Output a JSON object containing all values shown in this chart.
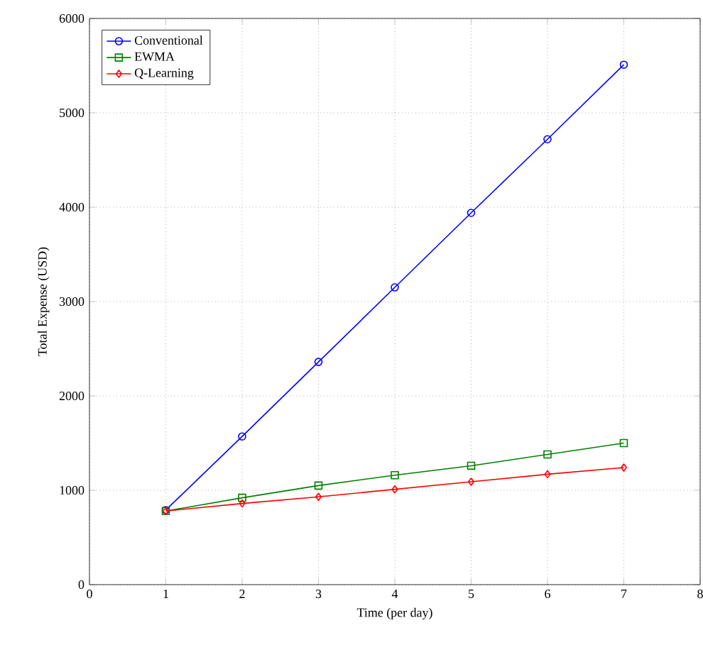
{
  "chart_data": {
    "type": "line",
    "xlabel": "Time (per day)",
    "ylabel": "Total Expense (USD)",
    "x": [
      1,
      2,
      3,
      4,
      5,
      6,
      7
    ],
    "series": [
      {
        "name": "Conventional",
        "color": "#0000ff",
        "marker": "circle",
        "values": [
          790,
          1570,
          2360,
          3150,
          3940,
          4720,
          5510
        ]
      },
      {
        "name": "EWMA",
        "color": "#008000",
        "marker": "square",
        "values": [
          780,
          920,
          1050,
          1160,
          1260,
          1380,
          1500
        ]
      },
      {
        "name": "Q-Learning",
        "color": "#ff0000",
        "marker": "diamond",
        "values": [
          780,
          860,
          930,
          1010,
          1090,
          1170,
          1240
        ]
      }
    ],
    "xlim": [
      0,
      8
    ],
    "xticks": [
      0,
      1,
      2,
      3,
      4,
      5,
      6,
      7,
      8
    ],
    "ylim": [
      0,
      6000
    ],
    "yticks": [
      0,
      1000,
      2000,
      3000,
      4000,
      5000,
      6000
    ],
    "grid": true,
    "legend": "top left",
    "line_style": "solid"
  }
}
